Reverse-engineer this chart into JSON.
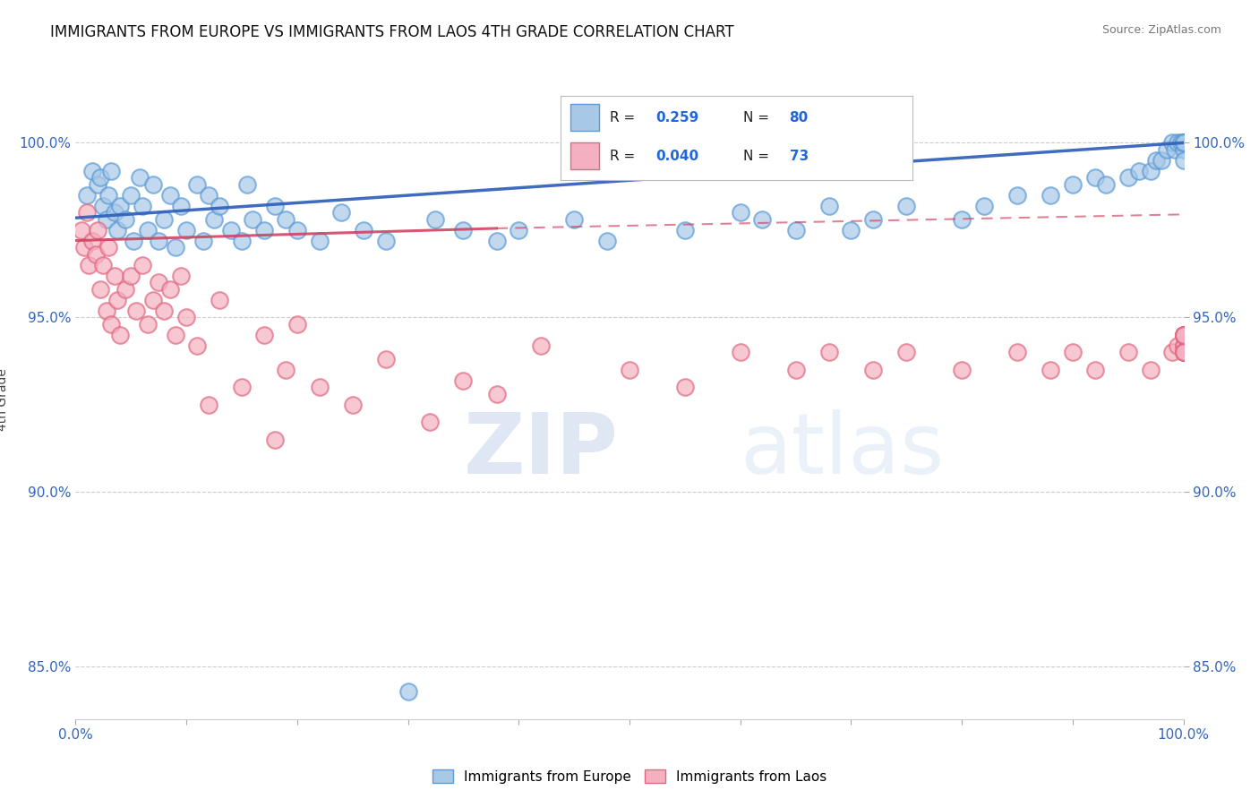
{
  "title": "IMMIGRANTS FROM EUROPE VS IMMIGRANTS FROM LAOS 4TH GRADE CORRELATION CHART",
  "source": "Source: ZipAtlas.com",
  "ylabel": "4th Grade",
  "xlim": [
    0,
    100
  ],
  "ylim": [
    83.5,
    101.8
  ],
  "yticks": [
    85,
    90,
    95,
    100
  ],
  "ytick_labels": [
    "85.0%",
    "90.0%",
    "95.0%",
    "100.0%"
  ],
  "xticks": [
    0,
    10,
    20,
    30,
    40,
    50,
    60,
    70,
    80,
    90,
    100
  ],
  "xtick_labels": [
    "0.0%",
    "",
    "",
    "",
    "",
    "",
    "",
    "",
    "",
    "",
    "100.0%"
  ],
  "legend_R_blue": "0.259",
  "legend_N_blue": "80",
  "legend_R_pink": "0.040",
  "legend_N_pink": "73",
  "blue_color": "#A8C8E8",
  "blue_edge": "#5B9BD5",
  "pink_color": "#F4B0C0",
  "pink_edge": "#E06880",
  "trendline_blue_color": "#3060BB",
  "trendline_pink_color": "#D04060",
  "blue_trendline_start_y": 97.85,
  "blue_trendline_end_y": 100.0,
  "pink_trendline_start_y": 97.2,
  "pink_trendline_solid_end_x": 38,
  "pink_trendline_solid_end_y": 97.55,
  "pink_trendline_end_y": 97.95,
  "blue_x": [
    1.0,
    1.5,
    2.0,
    2.2,
    2.5,
    2.8,
    3.0,
    3.2,
    3.5,
    3.8,
    4.0,
    4.5,
    5.0,
    5.2,
    5.8,
    6.0,
    6.5,
    7.0,
    7.5,
    8.0,
    8.5,
    9.0,
    9.5,
    10.0,
    11.0,
    11.5,
    12.0,
    12.5,
    13.0,
    14.0,
    15.0,
    15.5,
    16.0,
    17.0,
    18.0,
    19.0,
    20.0,
    22.0,
    24.0,
    26.0,
    28.0,
    30.0,
    32.5,
    35.0,
    38.0,
    40.0,
    45.0,
    48.0,
    55.0,
    60.0,
    62.0,
    65.0,
    68.0,
    70.0,
    72.0,
    75.0,
    80.0,
    82.0,
    85.0,
    88.0,
    90.0,
    92.0,
    93.0,
    95.0,
    96.0,
    97.0,
    97.5,
    98.0,
    98.5,
    99.0,
    99.2,
    99.5,
    99.8,
    100.0,
    100.0,
    100.0,
    100.0,
    100.0,
    100.0,
    100.0
  ],
  "blue_y": [
    98.5,
    99.2,
    98.8,
    99.0,
    98.2,
    97.8,
    98.5,
    99.2,
    98.0,
    97.5,
    98.2,
    97.8,
    98.5,
    97.2,
    99.0,
    98.2,
    97.5,
    98.8,
    97.2,
    97.8,
    98.5,
    97.0,
    98.2,
    97.5,
    98.8,
    97.2,
    98.5,
    97.8,
    98.2,
    97.5,
    97.2,
    98.8,
    97.8,
    97.5,
    98.2,
    97.8,
    97.5,
    97.2,
    98.0,
    97.5,
    97.2,
    84.3,
    97.8,
    97.5,
    97.2,
    97.5,
    97.8,
    97.2,
    97.5,
    98.0,
    97.8,
    97.5,
    98.2,
    97.5,
    97.8,
    98.2,
    97.8,
    98.2,
    98.5,
    98.5,
    98.8,
    99.0,
    98.8,
    99.0,
    99.2,
    99.2,
    99.5,
    99.5,
    99.8,
    100.0,
    99.8,
    100.0,
    100.0,
    100.0,
    99.8,
    100.0,
    100.0,
    99.5,
    100.0,
    100.0
  ],
  "pink_x": [
    0.5,
    0.8,
    1.0,
    1.2,
    1.5,
    1.8,
    2.0,
    2.2,
    2.5,
    2.8,
    3.0,
    3.2,
    3.5,
    3.8,
    4.0,
    4.5,
    5.0,
    5.5,
    6.0,
    6.5,
    7.0,
    7.5,
    8.0,
    8.5,
    9.0,
    9.5,
    10.0,
    11.0,
    12.0,
    13.0,
    15.0,
    17.0,
    18.0,
    19.0,
    20.0,
    22.0,
    25.0,
    28.0,
    32.0,
    35.0,
    38.0,
    42.0,
    50.0,
    55.0,
    60.0,
    65.0,
    68.0,
    72.0,
    75.0,
    80.0,
    85.0,
    88.0,
    90.0,
    92.0,
    95.0,
    97.0,
    99.0,
    99.5,
    100.0,
    100.0,
    100.0,
    100.0,
    100.0,
    100.0,
    100.0,
    100.0,
    100.0,
    100.0,
    100.0,
    100.0,
    100.0,
    100.0,
    100.0
  ],
  "pink_y": [
    97.5,
    97.0,
    98.0,
    96.5,
    97.2,
    96.8,
    97.5,
    95.8,
    96.5,
    95.2,
    97.0,
    94.8,
    96.2,
    95.5,
    94.5,
    95.8,
    96.2,
    95.2,
    96.5,
    94.8,
    95.5,
    96.0,
    95.2,
    95.8,
    94.5,
    96.2,
    95.0,
    94.2,
    92.5,
    95.5,
    93.0,
    94.5,
    91.5,
    93.5,
    94.8,
    93.0,
    92.5,
    93.8,
    92.0,
    93.2,
    92.8,
    94.2,
    93.5,
    93.0,
    94.0,
    93.5,
    94.0,
    93.5,
    94.0,
    93.5,
    94.0,
    93.5,
    94.0,
    93.5,
    94.0,
    93.5,
    94.0,
    94.2,
    94.5,
    94.2,
    94.5,
    94.2,
    94.5,
    94.0,
    94.5,
    94.0,
    94.5,
    94.0,
    94.5,
    94.0,
    94.5,
    94.0,
    94.5
  ]
}
